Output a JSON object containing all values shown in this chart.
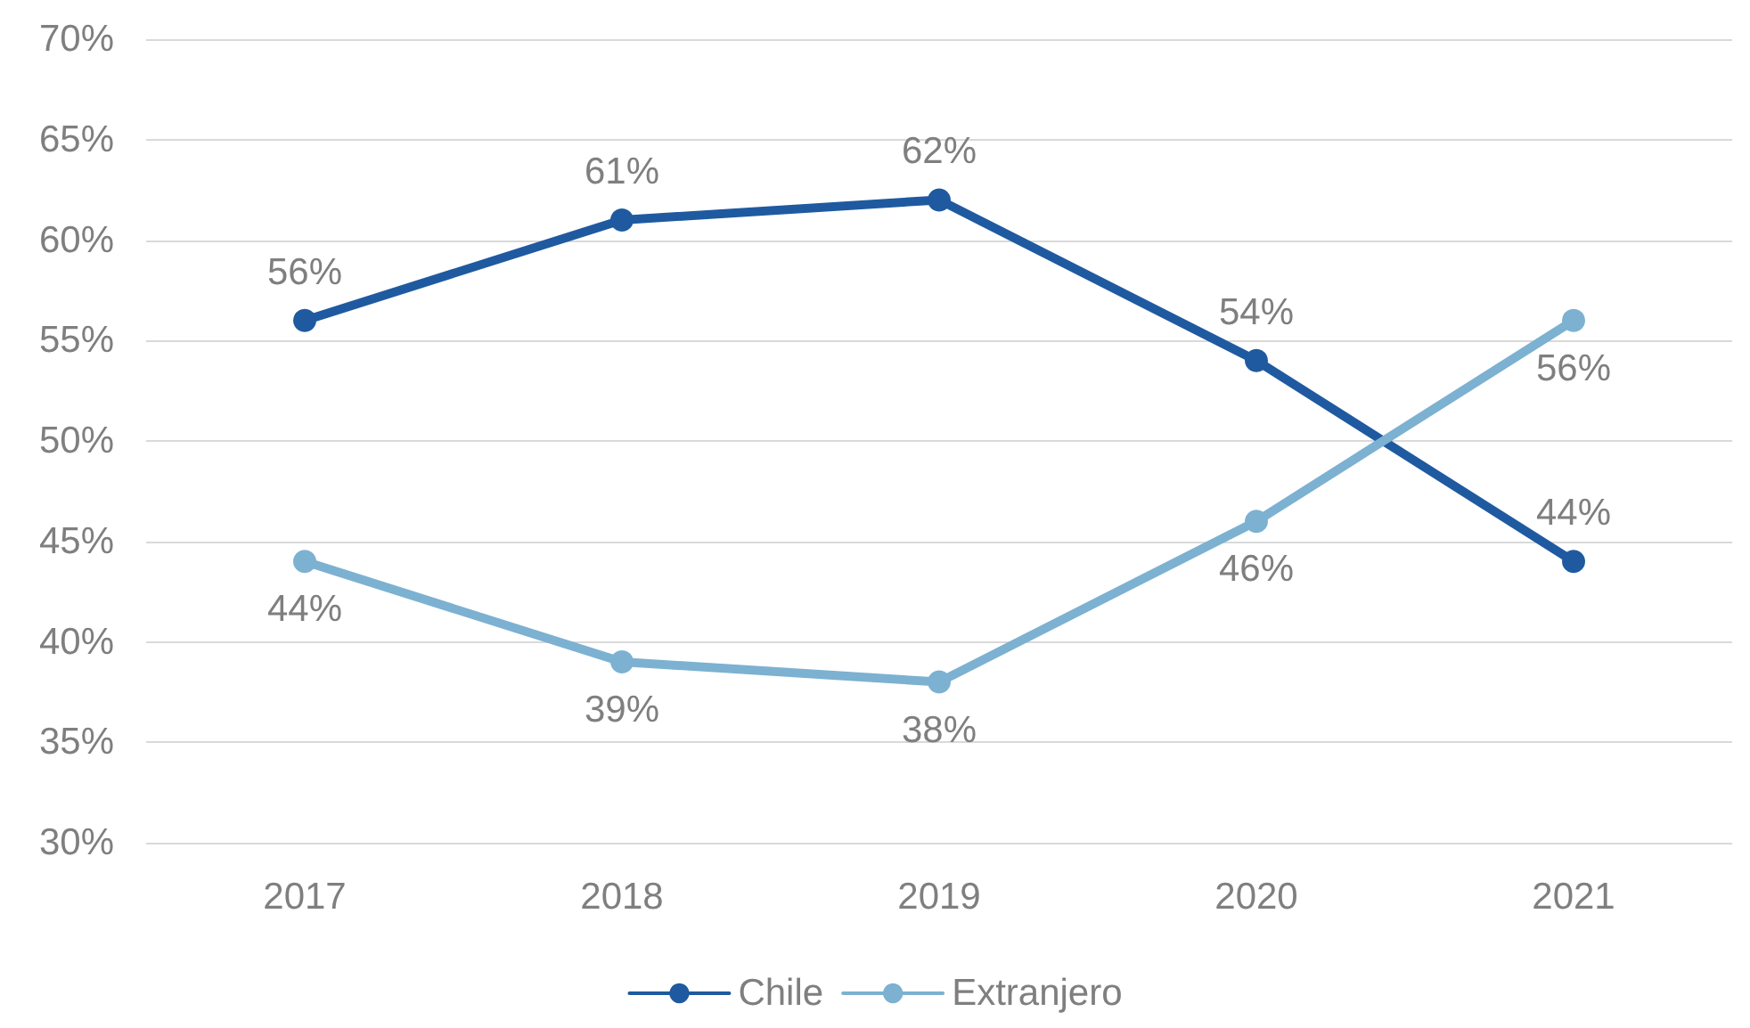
{
  "chart_data": {
    "type": "line",
    "categories": [
      "2017",
      "2018",
      "2019",
      "2020",
      "2021"
    ],
    "series": [
      {
        "name": "Chile",
        "color": "#1f5aa0",
        "values": [
          56,
          61,
          62,
          54,
          44
        ],
        "value_labels": [
          "56%",
          "61%",
          "62%",
          "54%",
          "44%"
        ]
      },
      {
        "name": "Extranjero",
        "color": "#7cb1d1",
        "values": [
          44,
          39,
          38,
          46,
          56
        ],
        "value_labels": [
          "44%",
          "39%",
          "38%",
          "46%",
          "56%"
        ]
      }
    ],
    "ylim": [
      30,
      70
    ],
    "yticks": [
      {
        "value": 30,
        "label": "30%"
      },
      {
        "value": 35,
        "label": "35%"
      },
      {
        "value": 40,
        "label": "40%"
      },
      {
        "value": 45,
        "label": "45%"
      },
      {
        "value": 50,
        "label": "50%"
      },
      {
        "value": 55,
        "label": "55%"
      },
      {
        "value": 60,
        "label": "60%"
      },
      {
        "value": 65,
        "label": "65%"
      },
      {
        "value": 70,
        "label": "70%"
      }
    ],
    "grid": "y",
    "legend": "bottom",
    "marker": "circle",
    "line_style": "solid"
  }
}
